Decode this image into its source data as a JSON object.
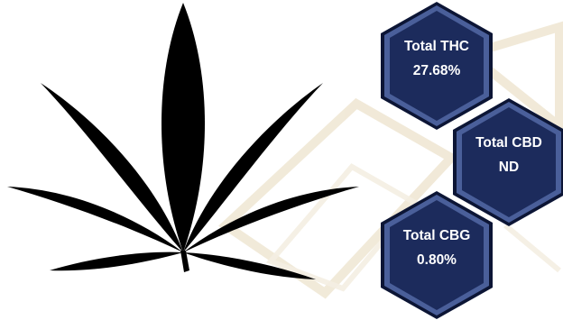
{
  "colors": {
    "hex_fill": "#1c2b5c",
    "hex_highlight": "#4a5f9a",
    "hex_shadow": "#0c1535",
    "leaf": "#000000",
    "watermark": "#efe6d2"
  },
  "icons": {
    "leaf": "cannabis-leaf-icon"
  },
  "badges": [
    {
      "label": "Total THC",
      "value": "27.68%"
    },
    {
      "label": "Total CBD",
      "value": "ND"
    },
    {
      "label": "Total CBG",
      "value": "0.80%"
    }
  ]
}
